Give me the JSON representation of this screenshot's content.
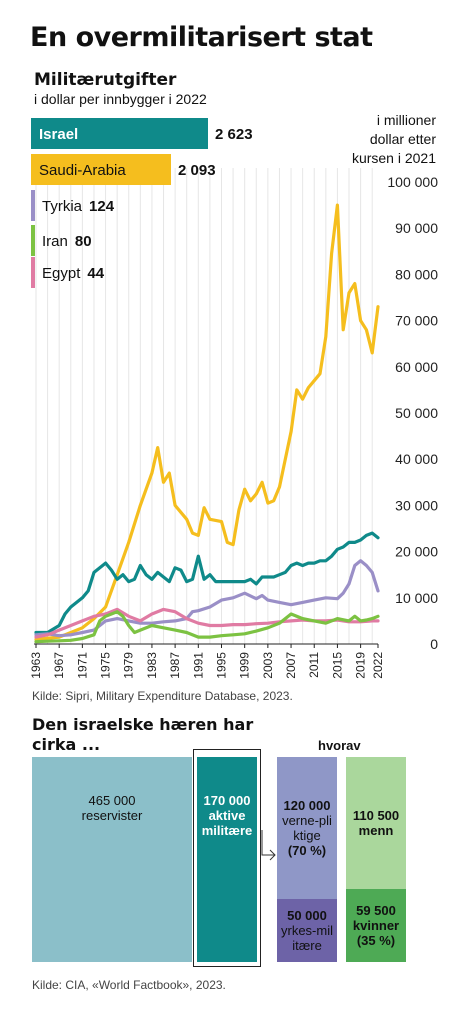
{
  "title": "En overmilitarisert stat",
  "subtitle": "Militærutgifter",
  "subtitle_note": "i dollar per innbygger i 2022",
  "unit_note": [
    "i millioner",
    "dollar etter",
    "kursen i 2021"
  ],
  "source1": "Kilde: Sipri, Military Expenditure Database, 2023.",
  "per_capita": [
    {
      "country": "Israel",
      "value": "2 623",
      "color": "#0f8a8a"
    },
    {
      "country": "Saudi-Arabia",
      "value": "2 093",
      "color": "#f5be1e"
    },
    {
      "country": "Tyrkia",
      "value": "124",
      "color": "#9a8fc7"
    },
    {
      "country": "Iran",
      "value": "80",
      "color": "#7cc242"
    },
    {
      "country": "Egypt",
      "value": "44",
      "color": "#e07ba3"
    }
  ],
  "chart_data": {
    "type": "line",
    "xlim": [
      1963,
      2022
    ],
    "ylim": [
      0,
      100000
    ],
    "yticks": [
      0,
      10000,
      20000,
      30000,
      40000,
      50000,
      60000,
      70000,
      80000,
      90000,
      100000
    ],
    "ytick_labels": [
      "0",
      "10 000",
      "20 000",
      "30 000",
      "40 000",
      "50 000",
      "60 000",
      "70 000",
      "80 000",
      "90 000",
      "100 000"
    ],
    "xticks": [
      1963,
      1967,
      1971,
      1975,
      1979,
      1983,
      1987,
      1991,
      1995,
      1999,
      2003,
      2007,
      2011,
      2015,
      2019,
      2022
    ],
    "grid": "vertical",
    "series": [
      {
        "name": "Saudi-Arabia",
        "color": "#f5be1e",
        "x": [
          1963,
          1967,
          1969,
          1971,
          1973,
          1975,
          1977,
          1979,
          1981,
          1983,
          1984,
          1985,
          1986,
          1987,
          1989,
          1990,
          1991,
          1992,
          1993,
          1995,
          1996,
          1997,
          1998,
          1999,
          2000,
          2001,
          2002,
          2003,
          2004,
          2005,
          2006,
          2007,
          2008,
          2009,
          2010,
          2011,
          2012,
          2013,
          2014,
          2015,
          2016,
          2017,
          2018,
          2019,
          2020,
          2021,
          2022
        ],
        "y": [
          1000,
          1500,
          2500,
          3500,
          5500,
          8000,
          15000,
          22000,
          30000,
          37000,
          42500,
          35000,
          37000,
          30000,
          27000,
          24000,
          23500,
          29500,
          27000,
          26500,
          22000,
          21500,
          29000,
          33500,
          31000,
          32500,
          35000,
          30500,
          31000,
          34000,
          40000,
          46000,
          55000,
          53000,
          55500,
          57000,
          58500,
          66500,
          84500,
          95000,
          68000,
          76000,
          78000,
          70000,
          68000,
          63000,
          73000
        ]
      },
      {
        "name": "Israel",
        "color": "#0f8a8a",
        "x": [
          1963,
          1965,
          1967,
          1968,
          1969,
          1971,
          1972,
          1973,
          1974,
          1975,
          1976,
          1977,
          1978,
          1979,
          1980,
          1981,
          1982,
          1983,
          1984,
          1985,
          1986,
          1987,
          1988,
          1989,
          1990,
          1991,
          1992,
          1993,
          1994,
          1995,
          1996,
          1997,
          1998,
          1999,
          2000,
          2001,
          2002,
          2003,
          2004,
          2005,
          2006,
          2007,
          2008,
          2009,
          2010,
          2011,
          2012,
          2013,
          2014,
          2015,
          2016,
          2017,
          2018,
          2019,
          2020,
          2021,
          2022
        ],
        "y": [
          2500,
          2500,
          4000,
          6500,
          8000,
          10000,
          11500,
          15500,
          16500,
          17500,
          16000,
          14000,
          15000,
          13500,
          14000,
          17000,
          15000,
          14000,
          15500,
          14500,
          13500,
          16500,
          16000,
          13500,
          14000,
          19000,
          14000,
          15000,
          13500,
          13500,
          13500,
          13500,
          13500,
          13500,
          14000,
          13000,
          14500,
          14500,
          14500,
          15000,
          15500,
          17000,
          17500,
          17000,
          17500,
          17500,
          18000,
          18000,
          19000,
          20500,
          21000,
          22000,
          22000,
          22500,
          23500,
          24000,
          23000
        ]
      },
      {
        "name": "Tyrkia",
        "color": "#9a8fc7",
        "x": [
          1963,
          1965,
          1967,
          1969,
          1971,
          1973,
          1975,
          1977,
          1979,
          1981,
          1983,
          1985,
          1987,
          1989,
          1990,
          1991,
          1993,
          1995,
          1997,
          1999,
          2001,
          2002,
          2003,
          2005,
          2007,
          2009,
          2011,
          2013,
          2015,
          2016,
          2017,
          2018,
          2019,
          2020,
          2021,
          2022
        ],
        "y": [
          2000,
          2200,
          1800,
          2000,
          2500,
          3000,
          5000,
          5500,
          5000,
          4500,
          4500,
          4800,
          5000,
          5500,
          7000,
          7200,
          8000,
          9500,
          10000,
          11000,
          9800,
          10500,
          9500,
          9000,
          8500,
          9000,
          9500,
          10000,
          9800,
          11000,
          13000,
          17000,
          18000,
          17000,
          15500,
          11500
        ]
      },
      {
        "name": "Egypt",
        "color": "#e07ba3",
        "x": [
          1963,
          1965,
          1967,
          1969,
          1971,
          1973,
          1975,
          1977,
          1979,
          1981,
          1983,
          1985,
          1987,
          1989,
          1991,
          1993,
          1995,
          1997,
          1999,
          2001,
          2003,
          2005,
          2007,
          2009,
          2011,
          2013,
          2015,
          2017,
          2019,
          2021,
          2022
        ],
        "y": [
          1500,
          2000,
          3000,
          4000,
          5000,
          6000,
          6500,
          7500,
          6000,
          5000,
          6500,
          7500,
          7000,
          5500,
          4500,
          4000,
          4000,
          4200,
          4200,
          4400,
          4500,
          4800,
          5000,
          5200,
          5000,
          5000,
          5200,
          4800,
          4800,
          5000,
          5000
        ]
      },
      {
        "name": "Iran",
        "color": "#7cc242",
        "x": [
          1963,
          1965,
          1967,
          1969,
          1971,
          1973,
          1974,
          1975,
          1976,
          1977,
          1978,
          1979,
          1980,
          1981,
          1983,
          1985,
          1987,
          1989,
          1991,
          1993,
          1995,
          1997,
          1999,
          2001,
          2003,
          2005,
          2007,
          2009,
          2011,
          2013,
          2015,
          2017,
          2018,
          2019,
          2020,
          2021,
          2022
        ],
        "y": [
          500,
          600,
          700,
          800,
          1200,
          2000,
          5000,
          6000,
          6500,
          7000,
          6000,
          4000,
          2500,
          3000,
          4000,
          3500,
          3000,
          2500,
          1500,
          1500,
          1800,
          2000,
          2200,
          2800,
          3500,
          4500,
          6500,
          5500,
          5000,
          4500,
          5500,
          5000,
          6000,
          5000,
          5200,
          5500,
          6000
        ]
      }
    ]
  },
  "army": {
    "title": "Den israelske hæren har cirka ...",
    "hvorav": "hvorav",
    "reservists": {
      "value": "465 000",
      "label": "reservister",
      "color": "#8bbfc9"
    },
    "active": {
      "value": "170 000",
      "label": "aktive militære",
      "color": "#0f8a8a"
    },
    "conscripts": {
      "value": "120 000",
      "label": "verne-pliktige",
      "pct": "(70 %)",
      "color": "#8f97c7"
    },
    "professional": {
      "value": "50 000",
      "label": "yrkes-militære",
      "color": "#6d63a7"
    },
    "men": {
      "value": "110 500",
      "label": "menn",
      "color": "#aad79c"
    },
    "women": {
      "value": "59 500",
      "label": "kvinner",
      "pct": "(35 %)",
      "color": "#4eaa55"
    }
  },
  "source2": "Kilde: CIA, «World Factbook», 2023."
}
